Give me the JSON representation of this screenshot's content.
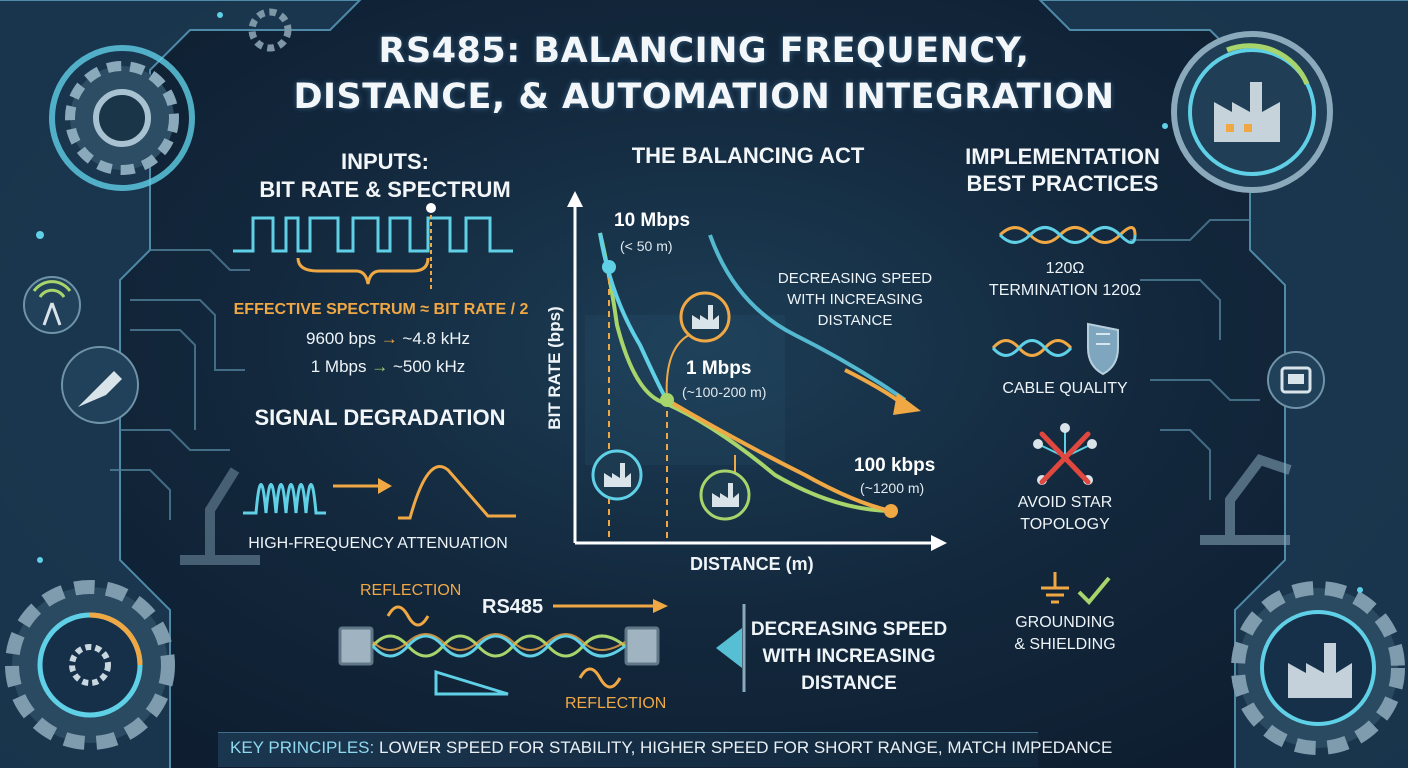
{
  "title": {
    "line1": "RS485: BALANCING FREQUENCY,",
    "line2": "DISTANCE, & AUTOMATION INTEGRATION"
  },
  "inputs": {
    "heading_line1": "INPUTS:",
    "heading_line2": "BIT RATE & SPECTRUM",
    "effective": "EFFECTIVE SPECTRUM ≈ BIT RATE / 2",
    "example1_left": "9600 bps",
    "example1_right": "~4.8 kHz",
    "example2_left": "1 Mbps",
    "example2_right": "~500 kHz",
    "arrow": "→"
  },
  "degradation": {
    "heading": "SIGNAL DEGRADATION",
    "caption": "HIGH-FREQUENCY ATTENUATION"
  },
  "cable": {
    "reflection_top": "REFLECTION",
    "reflection_bottom": "REFLECTION",
    "label": "RS485",
    "note_line1": "DECREASING SPEED",
    "note_line2": "WITH INCREASING",
    "note_line3": "DISTANCE"
  },
  "balancing": {
    "heading": "THE BALANCING ACT",
    "ylabel": "BIT RATE (bps)",
    "xlabel": "DISTANCE (m)",
    "point1_rate": "10 Mbps",
    "point1_dist": "(< 50 m)",
    "point2_rate": "1 Mbps",
    "point2_dist": "(~100-200 m)",
    "point3_rate": "100 kbps",
    "point3_dist": "(~1200 m)",
    "trend_line1": "DECREASING SPEED",
    "trend_line2": "WITH INCREASING",
    "trend_line3": "DISTANCE"
  },
  "best_practices": {
    "heading_line1": "IMPLEMENTATION",
    "heading_line2": "BEST PRACTICES",
    "termination_line1": "120Ω",
    "termination_line2": "TERMINATION 120Ω",
    "cable_quality": "CABLE QUALITY",
    "star_line1": "AVOID STAR",
    "star_line2": "TOPOLOGY",
    "ground_line1": "GROUNDING",
    "ground_line2": "& SHIELDING"
  },
  "footer": {
    "key": "KEY PRINCIPLES:",
    "text": "LOWER SPEED FOR STABILITY, HIGHER SPEED FOR SHORT RANGE, MATCH IMPEDANCE"
  },
  "colors": {
    "accent_orange": "#f0a845",
    "accent_cyan": "#5fd0e6",
    "accent_green": "#a7d46b",
    "warning_red": "#e0473f",
    "background": "#13283d"
  }
}
